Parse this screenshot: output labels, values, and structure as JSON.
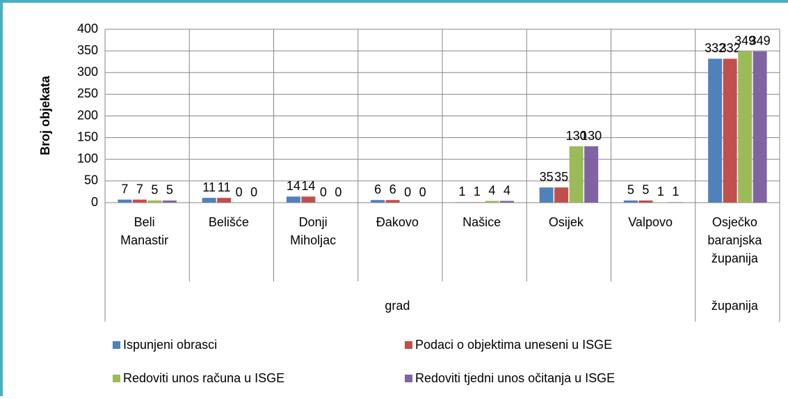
{
  "chart_data": {
    "type": "bar",
    "y_label": "Broj objekata",
    "categories": [
      "Beli Manastir",
      "Belišće",
      "Donji Miholjac",
      "Đakovo",
      "Našice",
      "Osijek",
      "Valpovo",
      "Osječko baranjska županija"
    ],
    "groups": [
      {
        "label": "grad",
        "span": 7
      },
      {
        "label": "županija",
        "span": 1
      }
    ],
    "series": [
      {
        "name": "Ispunjeni obrasci",
        "color": "#4f81bd",
        "values": [
          7,
          11,
          14,
          6,
          1,
          35,
          5,
          332
        ]
      },
      {
        "name": "Podaci o objektima uneseni u ISGE",
        "color": "#c0504d",
        "values": [
          7,
          11,
          14,
          6,
          1,
          35,
          5,
          332
        ]
      },
      {
        "name": "Redoviti unos računa u ISGE",
        "color": "#9bbb59",
        "values": [
          5,
          0,
          0,
          0,
          4,
          130,
          1,
          349
        ]
      },
      {
        "name": "Redoviti tjedni unos očitanja u ISGE",
        "color": "#8064a2",
        "values": [
          5,
          0,
          0,
          0,
          4,
          130,
          1,
          349
        ]
      }
    ],
    "ylim": [
      0,
      400
    ],
    "yticks": [
      0,
      50,
      100,
      150,
      200,
      250,
      300,
      350,
      400
    ],
    "grid": true
  }
}
